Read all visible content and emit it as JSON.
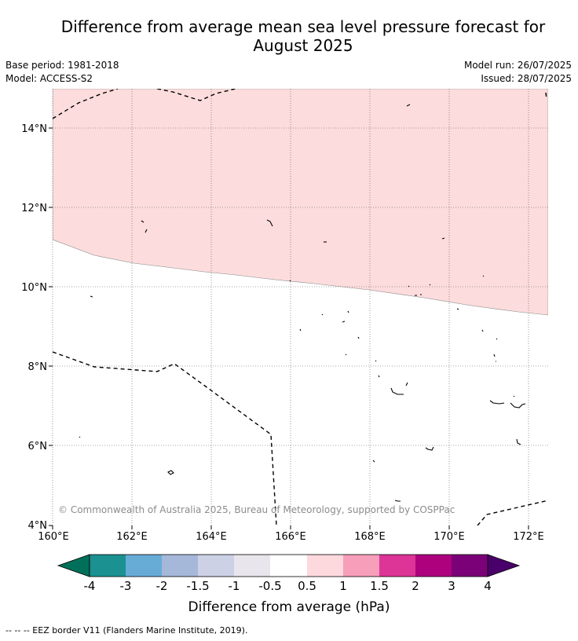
{
  "title_line1": "Difference from average mean sea level pressure forecast for",
  "title_line2": "August 2025",
  "meta": {
    "base_period": "Base period: 1981-2018",
    "model": "Model: ACCESS-S2",
    "model_run": "Model run: 26/07/2025",
    "issued": "Issued: 28/07/2025"
  },
  "map": {
    "lon_range": [
      160,
      172.5
    ],
    "lat_range": [
      4,
      15
    ],
    "x_ticks": [
      "160°E",
      "162°E",
      "164°E",
      "166°E",
      "168°E",
      "170°E",
      "172°E"
    ],
    "y_ticks": [
      "4°N",
      "6°N",
      "8°N",
      "10°N",
      "12°N",
      "14°N"
    ],
    "anomaly_fill_color": "#fcdcdc",
    "copyright": "© Commonwealth of Australia 2025, Bureau of Meteorology, supported by COSPPac"
  },
  "colorbar": {
    "labels": [
      "-4",
      "-3",
      "-2",
      "-1.5",
      "-1",
      "-0.5",
      "0.5",
      "1",
      "1.5",
      "2",
      "3",
      "4"
    ],
    "colors": [
      "#1b9191",
      "#67acd6",
      "#a6b8d9",
      "#cdd1e6",
      "#e8e6ec",
      "#ffffff",
      "#fdd9de",
      "#f79ebb",
      "#dd3497",
      "#ae017e",
      "#7a0177"
    ],
    "low_color": "#00705a",
    "high_color": "#4a006a",
    "label": "Difference from average (hPa)"
  },
  "footnote": "-- -- -- EEZ border V11 (Flanders Marine Institute, 2019)."
}
